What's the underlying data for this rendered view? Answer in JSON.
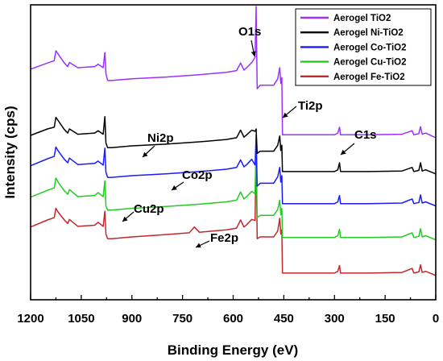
{
  "chart_data": {
    "type": "line",
    "title": "",
    "xlabel": "Binding Energy (eV)",
    "ylabel": "Intensity (cps)",
    "xlim": [
      1200,
      0
    ],
    "x_reversed": true,
    "xticks": [
      1200,
      1050,
      900,
      750,
      600,
      450,
      300,
      150,
      0
    ],
    "yticks_shown": false,
    "grid": false,
    "legend_position": "top-right",
    "series": [
      {
        "name": "Aerogel TiO2",
        "color": "#9b30ff",
        "x": [
          1200,
          1150,
          1130,
          1125,
          1118,
          1100,
          1090,
          1085,
          1060,
          1010,
          1000,
          985,
          980,
          977,
          972,
          960,
          900,
          800,
          700,
          620,
          590,
          578,
          568,
          560,
          545,
          535,
          532,
          529,
          520,
          480,
          468,
          462,
          459,
          456,
          454,
          440,
          400,
          300,
          290,
          285,
          282,
          200,
          100,
          70,
          65,
          50,
          45,
          40,
          30,
          0
        ],
        "values": [
          78.5,
          80.6,
          81.4,
          84.8,
          83.6,
          80.6,
          79.4,
          80.8,
          79.0,
          79.4,
          80.2,
          79.0,
          84.2,
          77.0,
          74.6,
          74.6,
          75.2,
          75.8,
          76.6,
          77.4,
          78.0,
          80.6,
          78.2,
          79.0,
          80.8,
          82.6,
          100,
          71.8,
          73.0,
          73.0,
          75.2,
          79.0,
          73.6,
          75.6,
          56.0,
          56.0,
          56.0,
          56.0,
          56.6,
          58.6,
          56.0,
          56.0,
          56.2,
          57.4,
          56.0,
          56.4,
          58.8,
          56.2,
          56.6,
          55.0
        ]
      },
      {
        "name": "Aerogel Ni-TiO2",
        "color": "#000000",
        "x": [
          1200,
          1150,
          1130,
          1125,
          1118,
          1100,
          1090,
          1085,
          1060,
          1010,
          1000,
          985,
          980,
          977,
          972,
          960,
          900,
          800,
          700,
          620,
          590,
          578,
          568,
          560,
          545,
          535,
          532,
          529,
          520,
          480,
          468,
          462,
          459,
          456,
          454,
          440,
          400,
          300,
          290,
          285,
          282,
          200,
          100,
          70,
          65,
          50,
          45,
          40,
          30,
          0
        ],
        "values": [
          55.8,
          58.0,
          58.6,
          62.0,
          60.8,
          57.8,
          56.6,
          58.0,
          56.2,
          56.6,
          57.4,
          56.2,
          62.2,
          53.2,
          51.6,
          51.6,
          52.2,
          52.8,
          53.6,
          54.4,
          55.0,
          57.6,
          55.2,
          56.0,
          57.6,
          57.2,
          58.0,
          49.6,
          50.4,
          50.4,
          52.4,
          55.6,
          50.6,
          52.4,
          43.4,
          43.4,
          43.4,
          43.4,
          44.0,
          46.4,
          43.4,
          43.4,
          43.6,
          44.8,
          43.4,
          43.8,
          46.4,
          43.6,
          44.0,
          42.6
        ]
      },
      {
        "name": "Aerogel Co-TiO2",
        "color": "#1a1aff",
        "x": [
          1200,
          1150,
          1130,
          1125,
          1118,
          1100,
          1090,
          1085,
          1060,
          1010,
          1000,
          985,
          980,
          977,
          972,
          960,
          900,
          800,
          700,
          620,
          590,
          578,
          568,
          560,
          545,
          535,
          532,
          529,
          520,
          480,
          468,
          462,
          459,
          456,
          454,
          440,
          400,
          300,
          290,
          285,
          282,
          200,
          100,
          70,
          65,
          50,
          45,
          40,
          30,
          0
        ],
        "values": [
          45.4,
          47.8,
          48.6,
          51.8,
          50.4,
          47.6,
          46.4,
          48.0,
          45.8,
          46.2,
          47.0,
          45.6,
          51.4,
          43.2,
          41.4,
          41.4,
          42.0,
          42.6,
          43.4,
          44.2,
          44.8,
          47.4,
          45.0,
          45.8,
          47.6,
          45.6,
          56.0,
          38.4,
          39.4,
          39.4,
          41.6,
          44.8,
          39.8,
          42.0,
          32.4,
          32.4,
          32.4,
          32.4,
          33.0,
          35.2,
          32.4,
          32.4,
          32.6,
          34.0,
          32.4,
          32.8,
          35.4,
          32.6,
          33.0,
          31.6
        ]
      },
      {
        "name": "Aerogel Cu-TiO2",
        "color": "#22cc22",
        "x": [
          1200,
          1150,
          1130,
          1125,
          1118,
          1100,
          1090,
          1085,
          1060,
          1010,
          1000,
          985,
          980,
          977,
          972,
          960,
          900,
          800,
          700,
          620,
          590,
          578,
          568,
          560,
          545,
          535,
          532,
          529,
          520,
          480,
          468,
          462,
          459,
          456,
          454,
          440,
          400,
          300,
          290,
          285,
          282,
          200,
          100,
          70,
          65,
          50,
          45,
          40,
          30,
          0
        ],
        "values": [
          34.6,
          37.0,
          37.8,
          41.2,
          39.6,
          36.8,
          35.6,
          37.2,
          34.8,
          35.2,
          36.2,
          34.8,
          40.2,
          31.6,
          30.2,
          30.2,
          30.8,
          31.4,
          32.2,
          33.0,
          33.6,
          36.4,
          34.0,
          34.8,
          36.6,
          35.8,
          54.0,
          27.6,
          28.4,
          28.4,
          30.4,
          33.6,
          28.6,
          30.8,
          20.8,
          20.8,
          20.8,
          20.8,
          21.4,
          23.6,
          20.8,
          20.8,
          21.0,
          22.4,
          20.8,
          21.2,
          23.8,
          21.0,
          21.4,
          20.0
        ]
      },
      {
        "name": "Aerogel Fe-TiO2",
        "color": "#c0282c",
        "x": [
          1200,
          1150,
          1130,
          1125,
          1118,
          1100,
          1090,
          1085,
          1060,
          1010,
          1000,
          985,
          980,
          977,
          972,
          960,
          900,
          800,
          730,
          715,
          700,
          620,
          590,
          578,
          568,
          560,
          545,
          535,
          532,
          529,
          520,
          480,
          468,
          462,
          459,
          456,
          454,
          440,
          400,
          300,
          290,
          285,
          282,
          200,
          100,
          70,
          65,
          50,
          45,
          40,
          30,
          0
        ],
        "values": [
          24.4,
          26.8,
          27.6,
          30.8,
          29.4,
          26.8,
          25.6,
          27.0,
          24.6,
          25.0,
          26.0,
          24.6,
          29.8,
          22.0,
          20.4,
          20.4,
          21.0,
          21.8,
          22.4,
          24.4,
          22.6,
          23.4,
          24.0,
          26.8,
          24.4,
          25.2,
          27.0,
          26.6,
          52.0,
          20.4,
          21.0,
          21.0,
          23.0,
          27.4,
          22.0,
          23.4,
          8.6,
          8.6,
          8.6,
          8.6,
          9.2,
          11.2,
          8.6,
          8.6,
          8.8,
          10.2,
          8.6,
          9.0,
          11.4,
          8.8,
          9.2,
          7.8
        ]
      }
    ],
    "annotations": [
      {
        "text": "O1s",
        "x": 532,
        "y": 94
      },
      {
        "text": "Ti2p",
        "x": 459,
        "y": 63
      },
      {
        "text": "C1s",
        "x": 285,
        "y": 63
      },
      {
        "text": "Ni2p",
        "x": 855,
        "y": 58
      },
      {
        "text": "Co2p",
        "x": 780,
        "y": 45
      },
      {
        "text": "Cu2p",
        "x": 935,
        "y": 33
      },
      {
        "text": "Fe2p",
        "x": 711,
        "y": 25
      }
    ]
  }
}
